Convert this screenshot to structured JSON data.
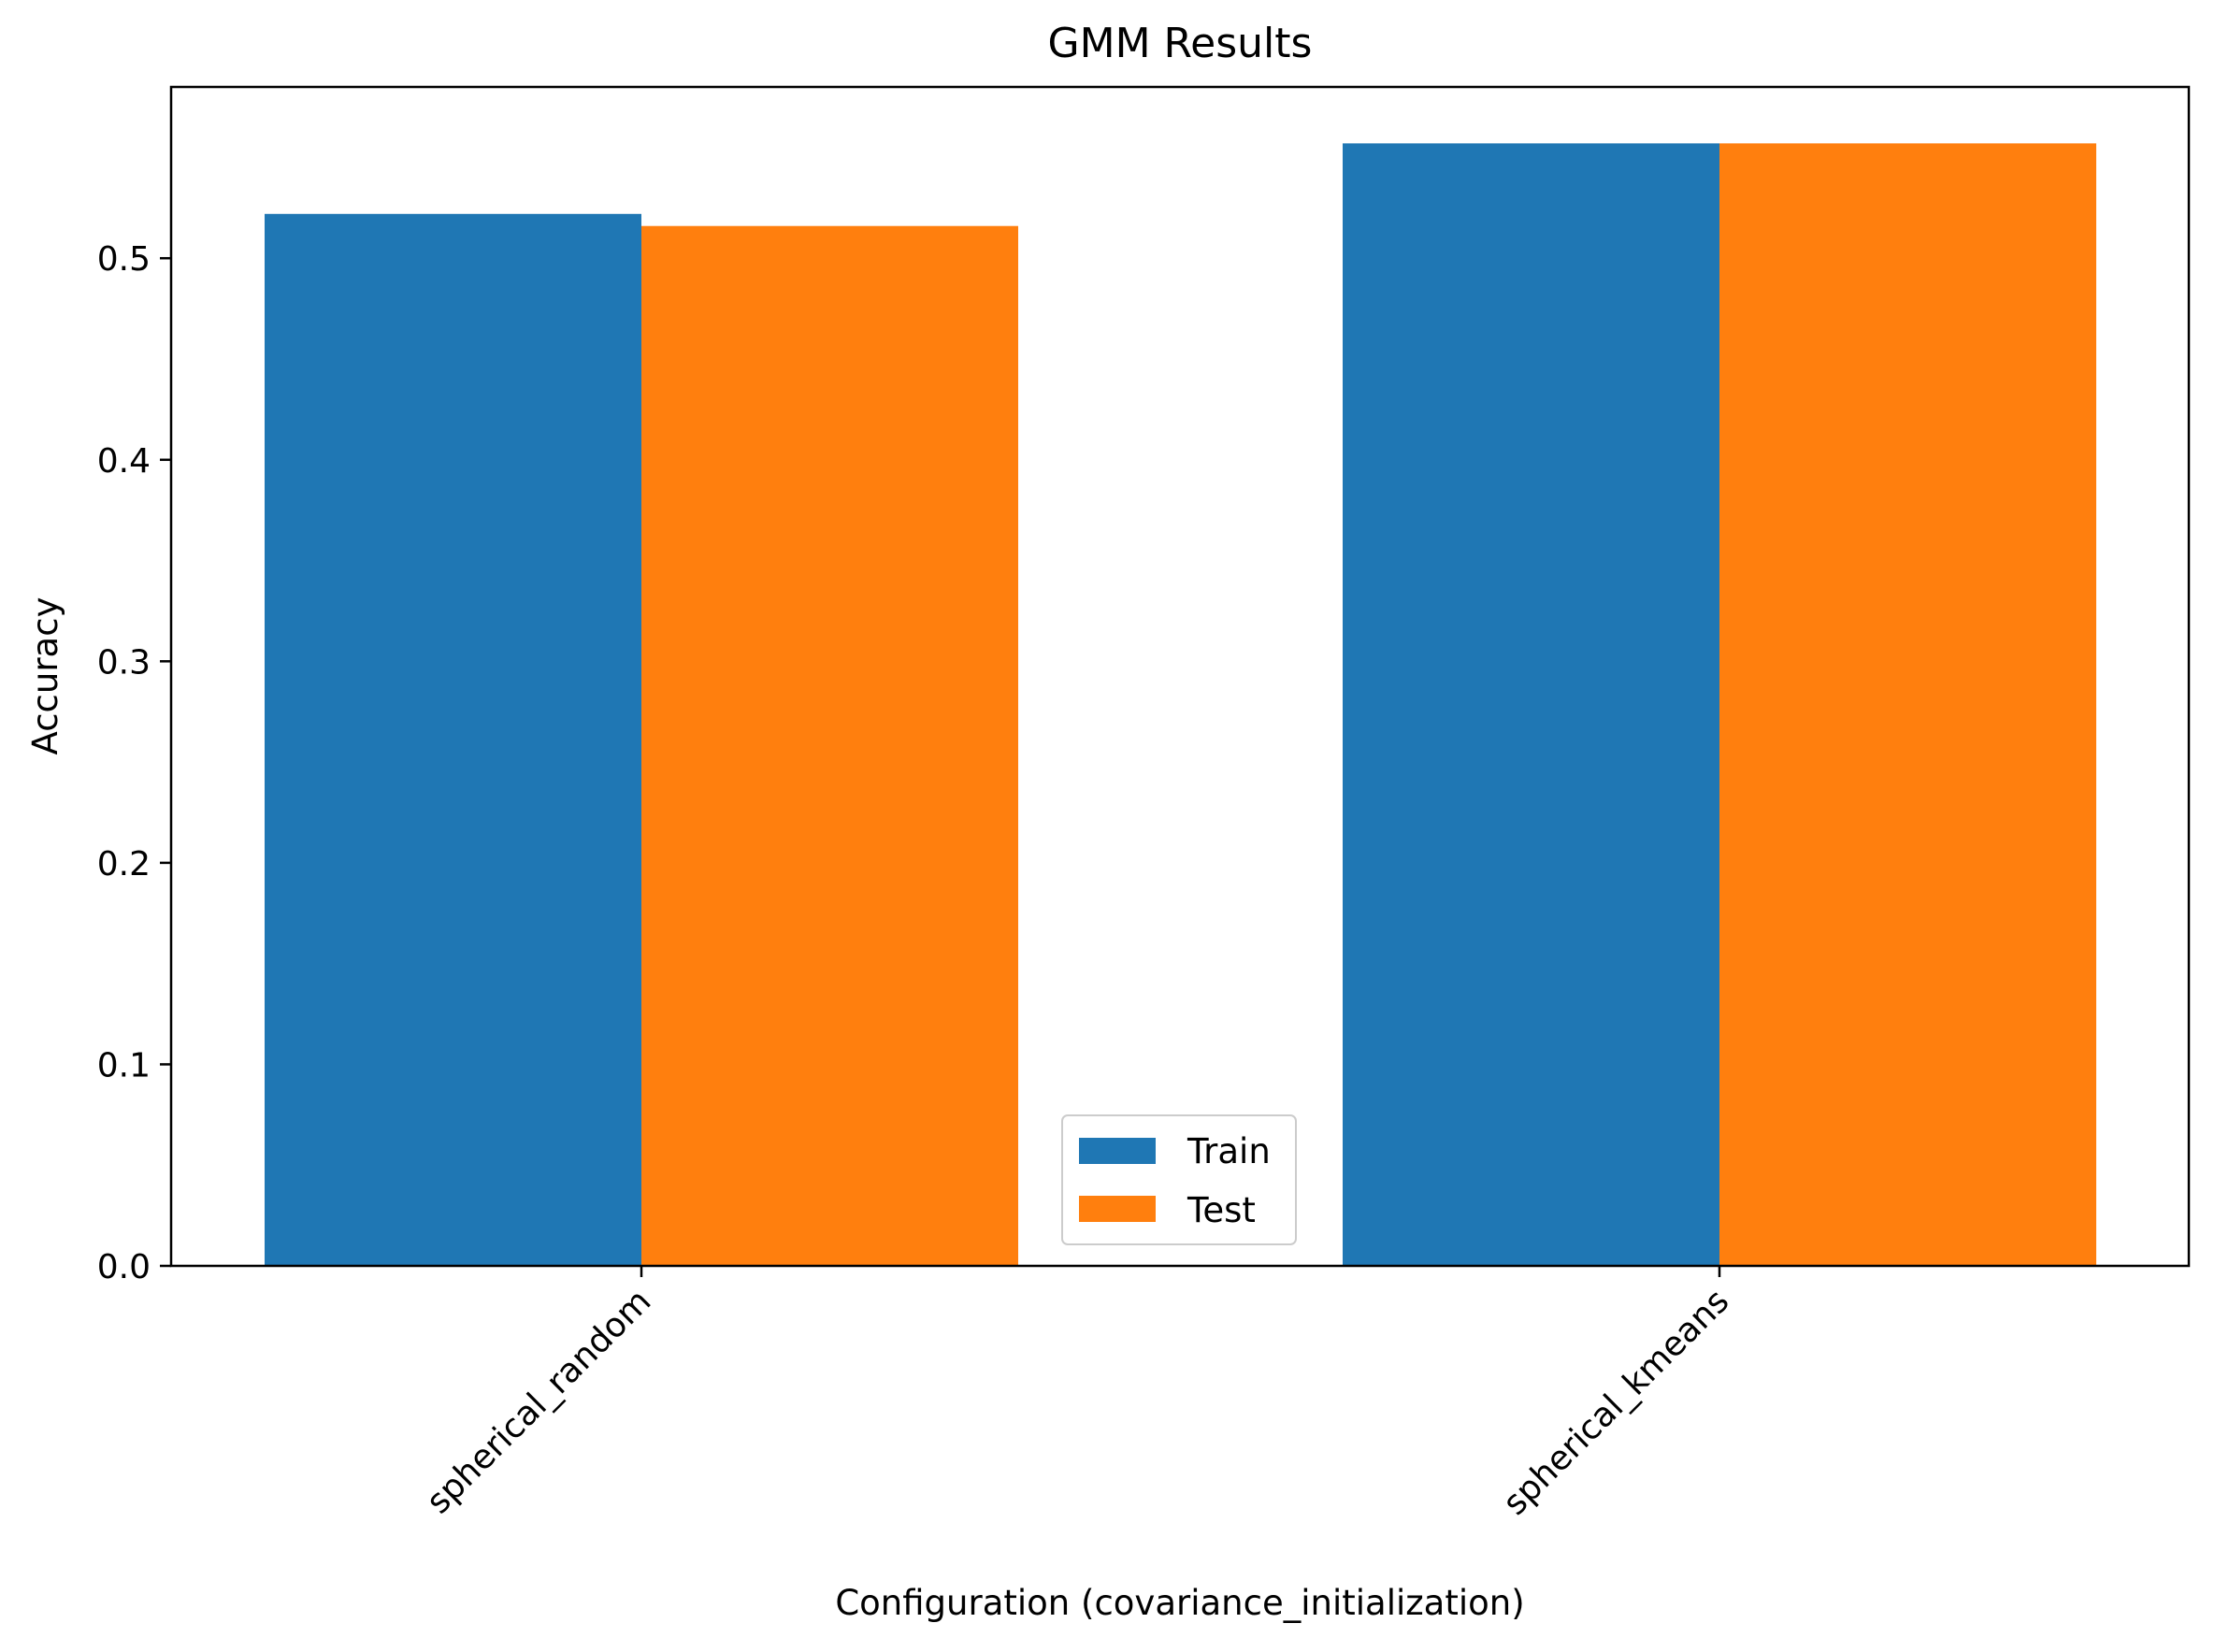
{
  "chart_data": {
    "type": "bar",
    "title": "GMM Results",
    "xlabel": "Configuration (covariance_initialization)",
    "ylabel": "Accuracy",
    "categories": [
      "spherical_random",
      "spherical_kmeans"
    ],
    "series": [
      {
        "name": "Train",
        "values": [
          0.522,
          0.557
        ]
      },
      {
        "name": "Test",
        "values": [
          0.516,
          0.557
        ]
      }
    ],
    "ylim": [
      0,
      0.585
    ],
    "yticks": [
      0.0,
      0.1,
      0.2,
      0.3,
      0.4,
      0.5
    ],
    "ytick_labels": [
      "0.0",
      "0.1",
      "0.2",
      "0.3",
      "0.4",
      "0.5"
    ],
    "grid": false,
    "legend_position": "bottom-center",
    "colors": {
      "Train": "#1f77b4",
      "Test": "#ff7f0e"
    }
  }
}
